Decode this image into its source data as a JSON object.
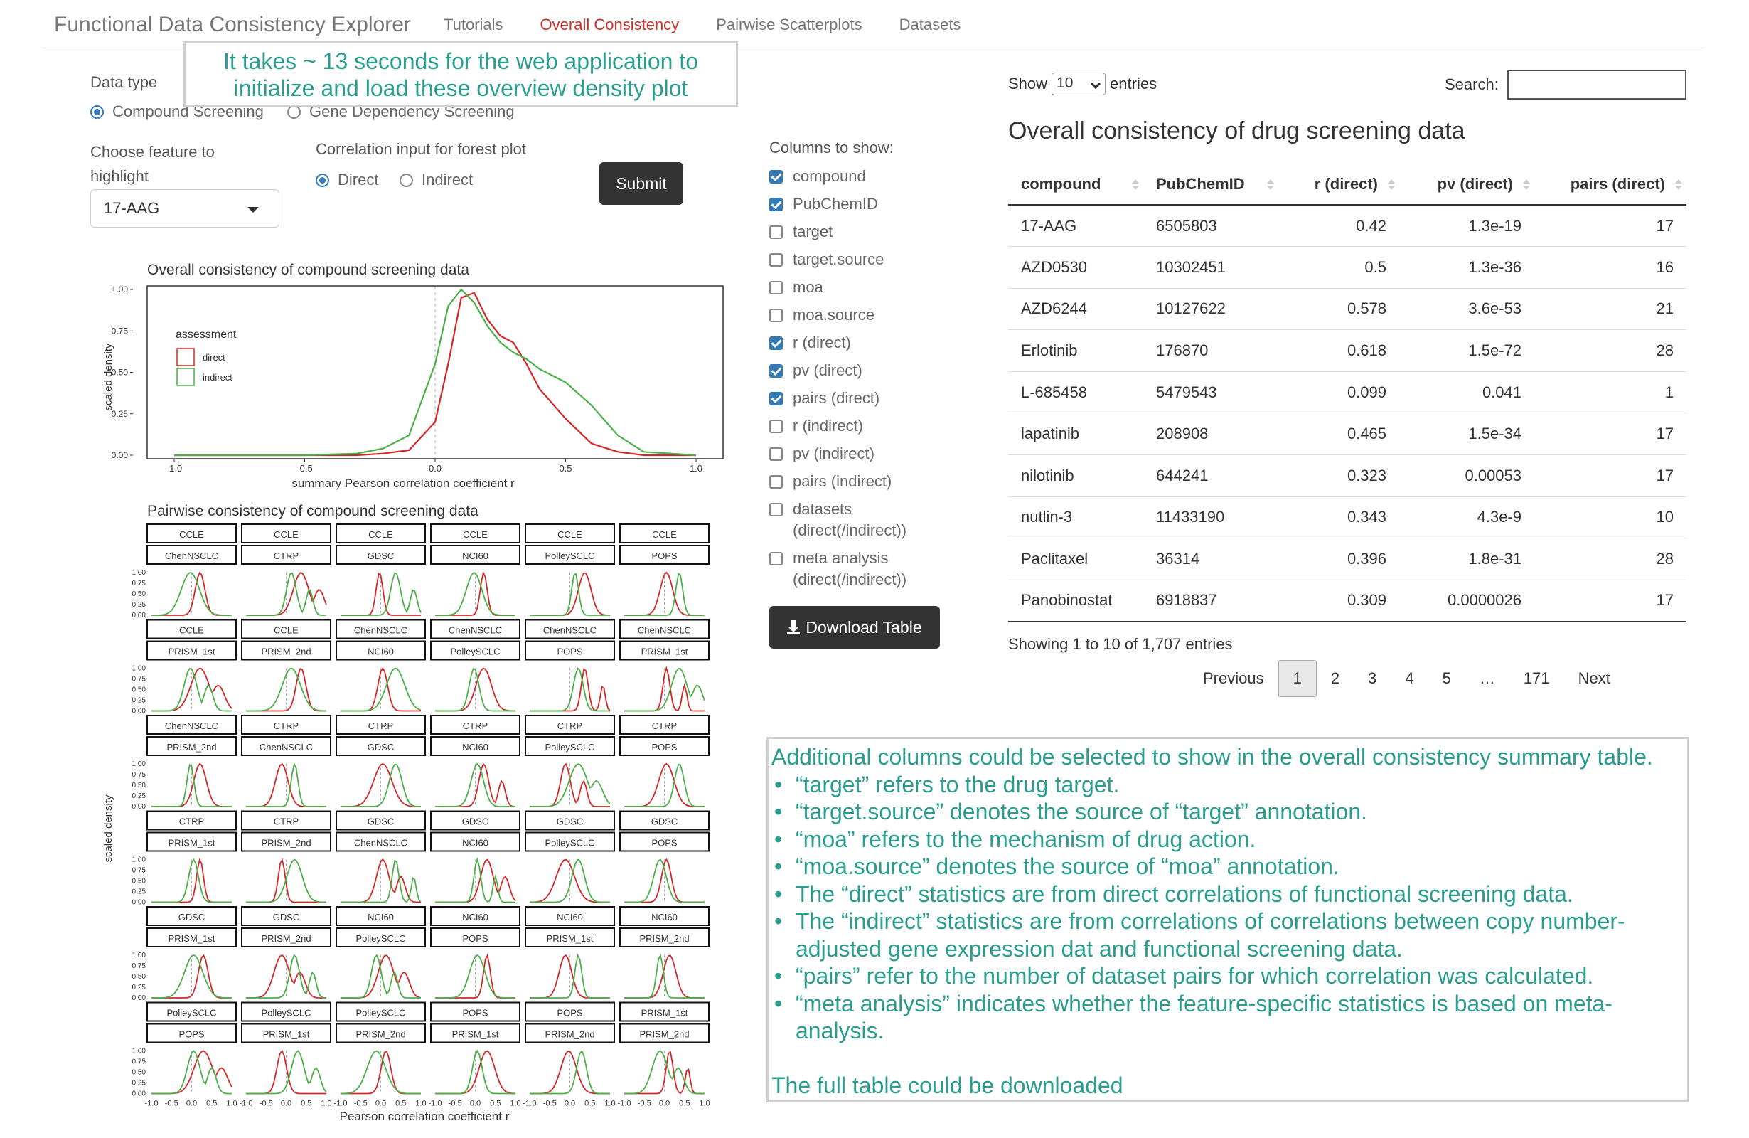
{
  "navbar": {
    "brand": "Functional Data Consistency Explorer",
    "links": [
      {
        "label": "Tutorials",
        "active": false
      },
      {
        "label": "Overall Consistency",
        "active": true
      },
      {
        "label": "Pairwise Scatterplots",
        "active": false
      },
      {
        "label": "Datasets",
        "active": false
      }
    ]
  },
  "callout_top": "It takes ~ 13 seconds for the web application to initialize and load these overview density plot",
  "data_type": {
    "label": "Data type",
    "options": [
      "Compound Screening",
      "Gene Dependency Screening"
    ],
    "selected": "Compound Screening"
  },
  "feature": {
    "label": "Choose feature to highlight",
    "value": "17-AAG"
  },
  "corr_input": {
    "label": "Correlation input for forest plot",
    "options": [
      "Direct",
      "Indirect"
    ],
    "selected": "Direct"
  },
  "submit_label": "Submit",
  "columns": {
    "title": "Columns to show:",
    "items": [
      {
        "label": "compound",
        "checked": true
      },
      {
        "label": "PubChemID",
        "checked": true
      },
      {
        "label": "target",
        "checked": false
      },
      {
        "label": "target.source",
        "checked": false
      },
      {
        "label": "moa",
        "checked": false
      },
      {
        "label": "moa.source",
        "checked": false
      },
      {
        "label": "r (direct)",
        "checked": true
      },
      {
        "label": "pv (direct)",
        "checked": true
      },
      {
        "label": "pairs (direct)",
        "checked": true
      },
      {
        "label": "r (indirect)",
        "checked": false
      },
      {
        "label": "pv (indirect)",
        "checked": false
      },
      {
        "label": "pairs (indirect)",
        "checked": false
      },
      {
        "label": "datasets (direct(/indirect))",
        "checked": false
      },
      {
        "label": "meta analysis (direct(/indirect))",
        "checked": false
      }
    ]
  },
  "download_label": "Download Table",
  "table": {
    "show_label": "Show",
    "entries_label": "entries",
    "page_length": "10",
    "search_label": "Search:",
    "title": "Overall consistency of drug screening data",
    "headers": [
      "compound",
      "PubChemID",
      "r (direct)",
      "pv (direct)",
      "pairs (direct)"
    ],
    "rows": [
      [
        "17-AAG",
        "6505803",
        "0.42",
        "1.3e-19",
        "17"
      ],
      [
        "AZD0530",
        "10302451",
        "0.5",
        "1.3e-36",
        "16"
      ],
      [
        "AZD6244",
        "10127622",
        "0.578",
        "3.6e-53",
        "21"
      ],
      [
        "Erlotinib",
        "176870",
        "0.618",
        "1.5e-72",
        "28"
      ],
      [
        "L-685458",
        "5479543",
        "0.099",
        "0.041",
        "1"
      ],
      [
        "lapatinib",
        "208908",
        "0.465",
        "1.5e-34",
        "17"
      ],
      [
        "nilotinib",
        "644241",
        "0.323",
        "0.00053",
        "17"
      ],
      [
        "nutlin-3",
        "11433190",
        "0.343",
        "4.3e-9",
        "10"
      ],
      [
        "Paclitaxel",
        "36314",
        "0.396",
        "1.8e-31",
        "28"
      ],
      [
        "Panobinostat",
        "6918837",
        "0.309",
        "0.0000026",
        "17"
      ]
    ],
    "info": "Showing 1 to 10 of 1,707 entries",
    "pagination": [
      "Previous",
      "1",
      "2",
      "3",
      "4",
      "5",
      "…",
      "171",
      "Next"
    ],
    "current_page": "1"
  },
  "note": {
    "intro": "Additional columns could be selected to show in the overall consistency summary table.",
    "bullets": [
      "“target” refers to the drug target.",
      "“target.source” denotes the source of “target” annotation.",
      "“moa” refers to the mechanism of drug action.",
      "“moa.source” denotes the source of “moa” annotation.",
      "The “direct” statistics are from direct correlations of functional screening data.",
      "The “indirect” statistics are from correlations of correlations between copy number-adjusted gene expression dat and functional screening data.",
      "“pairs” refer to the number of dataset pairs for which correlation was calculated.",
      "“meta analysis” indicates whether the feature-specific statistics is based on meta-analysis."
    ],
    "footer": "The full table could be downloaded"
  },
  "chart_data": [
    {
      "type": "line",
      "title": "Overall consistency of compound screening data",
      "xlabel": "summary Pearson correlation coefficient r",
      "ylabel": "scaled density",
      "xlim": [
        -1.0,
        1.0
      ],
      "ylim": [
        0,
        1.0
      ],
      "x_ticks": [
        "-1.0",
        "-0.5",
        "0.0",
        "0.5",
        "1.0"
      ],
      "y_ticks": [
        "0.00",
        "0.25",
        "0.50",
        "0.75",
        "1.00"
      ],
      "legend": {
        "title": "assessment",
        "entries": [
          "direct",
          "indirect"
        ],
        "position": "top-left"
      },
      "colors": {
        "direct": "#d62728",
        "indirect": "#4daf4a"
      },
      "x": [
        -1.0,
        -0.5,
        -0.3,
        -0.2,
        -0.1,
        0.0,
        0.05,
        0.1,
        0.15,
        0.2,
        0.25,
        0.3,
        0.35,
        0.4,
        0.5,
        0.6,
        0.7,
        0.8,
        1.0
      ],
      "series": [
        {
          "name": "direct",
          "values": [
            0,
            0,
            0.0,
            0.01,
            0.03,
            0.2,
            0.55,
            0.95,
            0.98,
            0.82,
            0.72,
            0.68,
            0.55,
            0.4,
            0.22,
            0.07,
            0.02,
            0.0,
            0
          ]
        },
        {
          "name": "indirect",
          "values": [
            0,
            0,
            0.01,
            0.04,
            0.12,
            0.55,
            0.9,
            1.0,
            0.92,
            0.78,
            0.68,
            0.62,
            0.58,
            0.52,
            0.44,
            0.3,
            0.12,
            0.02,
            0
          ]
        }
      ]
    },
    {
      "type": "line",
      "title": "Pairwise consistency of compound screening data",
      "xlabel": "Pearson correlation coefficient r",
      "ylabel": "scaled density",
      "x_ticks": [
        "-1.0",
        "-0.5",
        "0.0",
        "0.5",
        "1.0"
      ],
      "y_ticks": [
        "0.00",
        "0.25",
        "0.50",
        "0.75",
        "1.00"
      ],
      "panels": [
        [
          "CCLE",
          "ChenNSCLC"
        ],
        [
          "CCLE",
          "CTRP"
        ],
        [
          "CCLE",
          "GDSC"
        ],
        [
          "CCLE",
          "NCI60"
        ],
        [
          "CCLE",
          "PolleySCLC"
        ],
        [
          "CCLE",
          "POPS"
        ],
        [
          "CCLE",
          "PRISM_1st"
        ],
        [
          "CCLE",
          "PRISM_2nd"
        ],
        [
          "ChenNSCLC",
          "NCI60"
        ],
        [
          "ChenNSCLC",
          "PolleySCLC"
        ],
        [
          "ChenNSCLC",
          "POPS"
        ],
        [
          "ChenNSCLC",
          "PRISM_1st"
        ],
        [
          "ChenNSCLC",
          "PRISM_2nd"
        ],
        [
          "CTRP",
          "ChenNSCLC"
        ],
        [
          "CTRP",
          "GDSC"
        ],
        [
          "CTRP",
          "NCI60"
        ],
        [
          "CTRP",
          "PolleySCLC"
        ],
        [
          "CTRP",
          "POPS"
        ],
        [
          "CTRP",
          "PRISM_1st"
        ],
        [
          "CTRP",
          "PRISM_2nd"
        ],
        [
          "GDSC",
          "ChenNSCLC"
        ],
        [
          "GDSC",
          "NCI60"
        ],
        [
          "GDSC",
          "PolleySCLC"
        ],
        [
          "GDSC",
          "POPS"
        ],
        [
          "GDSC",
          "PRISM_1st"
        ],
        [
          "GDSC",
          "PRISM_2nd"
        ],
        [
          "NCI60",
          "PolleySCLC"
        ],
        [
          "NCI60",
          "POPS"
        ],
        [
          "NCI60",
          "PRISM_1st"
        ],
        [
          "NCI60",
          "PRISM_2nd"
        ],
        [
          "PolleySCLC",
          "POPS"
        ],
        [
          "PolleySCLC",
          "PRISM_1st"
        ],
        [
          "PolleySCLC",
          "PRISM_2nd"
        ],
        [
          "POPS",
          "PRISM_1st"
        ],
        [
          "POPS",
          "PRISM_2nd"
        ],
        [
          "PRISM_1st",
          "PRISM_2nd"
        ]
      ]
    }
  ]
}
